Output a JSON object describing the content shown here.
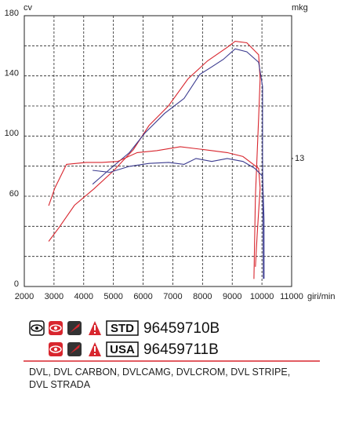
{
  "chart_data": {
    "type": "line",
    "y_label": "cv",
    "y2_label": "mkg",
    "x_unit": "giri/min",
    "xlim": [
      2000,
      11000
    ],
    "xticks": [
      2000,
      3000,
      4000,
      5000,
      6000,
      7000,
      8000,
      9000,
      10000,
      11000
    ],
    "ylim": [
      0,
      180
    ],
    "yticks": [
      0,
      60,
      100,
      140,
      180
    ],
    "minor_yticks": [
      20,
      40,
      80,
      120,
      160
    ],
    "y2lim": [
      0,
      27.5
    ],
    "y2ticks": [
      13
    ],
    "grid": true,
    "series": [
      {
        "color": "#d8262e",
        "x": [
          2820,
          3160,
          3690,
          4350,
          5010,
          5670,
          6200,
          6850,
          7510,
          8170,
          8830,
          9100,
          9490,
          9890,
          9940,
          9890,
          9780,
          9730
        ],
        "values": [
          30,
          39,
          54,
          65,
          77,
          91,
          107,
          120,
          138,
          150,
          159,
          163,
          162,
          154,
          138,
          112,
          60,
          5
        ]
      },
      {
        "color": "#3b3b8f",
        "x": [
          4300,
          4880,
          5540,
          6060,
          6720,
          7380,
          7910,
          8310,
          8700,
          9100,
          9490,
          9890,
          10020,
          10020,
          10050
        ],
        "values": [
          68,
          78,
          89,
          102,
          115,
          125,
          141,
          146,
          151,
          158,
          156,
          149,
          133,
          86,
          5
        ]
      },
      {
        "color": "#d8262e",
        "axis": "y2",
        "x": [
          2820,
          3030,
          3420,
          4080,
          4610,
          5140,
          5800,
          6460,
          7250,
          8040,
          8830,
          9360,
          9890,
          9940,
          9840,
          9780
        ],
        "values": [
          8.2,
          10.0,
          12.4,
          12.6,
          12.6,
          12.7,
          13.6,
          13.8,
          14.2,
          13.9,
          13.6,
          13.2,
          12.0,
          10.0,
          5.2,
          2.0
        ]
      },
      {
        "color": "#3b3b8f",
        "axis": "y2",
        "x": [
          4300,
          4880,
          5540,
          6200,
          6860,
          7380,
          7780,
          8310,
          8830,
          9360,
          9760,
          10020,
          10070,
          10070
        ],
        "values": [
          11.8,
          11.6,
          12.2,
          12.5,
          12.6,
          12.4,
          13.0,
          12.7,
          13.0,
          12.7,
          12.0,
          11.2,
          6.8,
          0.8
        ]
      }
    ]
  },
  "parts": [
    {
      "label": "STD",
      "code": "96459710B"
    },
    {
      "label": "USA",
      "code": "96459711B"
    }
  ],
  "models": "DVL, DVL CARBON, DVLCAMG, DVLCROM, DVL STRIPE, DVL STRADA"
}
